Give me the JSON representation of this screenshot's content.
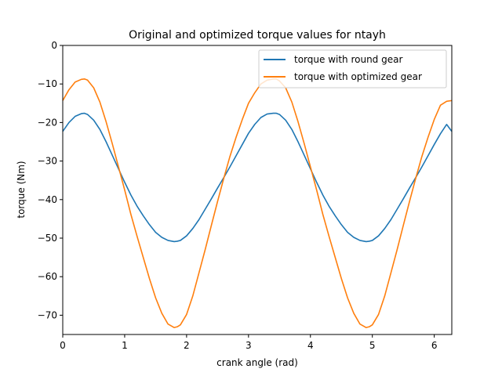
{
  "chart_data": {
    "type": "line",
    "title": "Original and optimized torque values for ntayh",
    "xlabel": "crank angle (rad)",
    "ylabel": "torque (Nm)",
    "xlim": [
      0,
      6.2832
    ],
    "ylim": [
      -75,
      0
    ],
    "xticks": [
      0,
      1,
      2,
      3,
      4,
      5,
      6
    ],
    "yticks": [
      0,
      -10,
      -20,
      -30,
      -40,
      -50,
      -60,
      -70
    ],
    "xtick_labels": [
      "0",
      "1",
      "2",
      "3",
      "4",
      "5",
      "6"
    ],
    "ytick_labels": [
      "0",
      "−10",
      "−20",
      "−30",
      "−40",
      "−50",
      "−60",
      "−70"
    ],
    "grid": false,
    "legend_position": "upper right",
    "series": [
      {
        "name": "torque with round gear",
        "color": "#1f77b4",
        "x": [
          0,
          0.1,
          0.2,
          0.3,
          0.35,
          0.4,
          0.5,
          0.6,
          0.7,
          0.8,
          0.9,
          1.0,
          1.1,
          1.2,
          1.3,
          1.4,
          1.5,
          1.6,
          1.7,
          1.8,
          1.85,
          1.9,
          2.0,
          2.1,
          2.2,
          2.3,
          2.4,
          2.5,
          2.6,
          2.7,
          2.8,
          2.9,
          3.0,
          3.1,
          3.2,
          3.3,
          3.4,
          3.45,
          3.5,
          3.6,
          3.7,
          3.8,
          3.9,
          4.0,
          4.1,
          4.2,
          4.3,
          4.4,
          4.5,
          4.6,
          4.7,
          4.8,
          4.9,
          4.95,
          5.0,
          5.1,
          5.2,
          5.3,
          5.4,
          5.5,
          5.6,
          5.7,
          5.8,
          5.9,
          6.0,
          6.1,
          6.2,
          6.2832
        ],
        "y": [
          -22.3,
          -20.0,
          -18.4,
          -17.7,
          -17.6,
          -17.9,
          -19.4,
          -21.8,
          -25.0,
          -28.5,
          -32.0,
          -35.5,
          -38.8,
          -41.7,
          -44.2,
          -46.5,
          -48.5,
          -49.8,
          -50.6,
          -50.9,
          -50.8,
          -50.6,
          -49.4,
          -47.5,
          -45.2,
          -42.5,
          -39.8,
          -37.0,
          -34.3,
          -31.5,
          -28.6,
          -25.7,
          -22.8,
          -20.5,
          -18.7,
          -17.8,
          -17.6,
          -17.6,
          -17.9,
          -19.4,
          -21.8,
          -25.0,
          -28.5,
          -32.0,
          -35.5,
          -38.8,
          -41.7,
          -44.2,
          -46.5,
          -48.5,
          -49.8,
          -50.6,
          -50.9,
          -50.8,
          -50.6,
          -49.4,
          -47.5,
          -45.2,
          -42.5,
          -39.8,
          -37.0,
          -34.3,
          -31.5,
          -28.6,
          -25.7,
          -22.9,
          -20.5,
          -22.3
        ]
      },
      {
        "name": "torque with optimized gear",
        "color": "#ff7f0e",
        "x": [
          0,
          0.1,
          0.2,
          0.3,
          0.35,
          0.4,
          0.5,
          0.6,
          0.7,
          0.8,
          0.9,
          1.0,
          1.1,
          1.2,
          1.3,
          1.4,
          1.5,
          1.6,
          1.7,
          1.8,
          1.85,
          1.9,
          2.0,
          2.1,
          2.2,
          2.3,
          2.4,
          2.5,
          2.6,
          2.7,
          2.8,
          2.9,
          3.0,
          3.1,
          3.2,
          3.3,
          3.4,
          3.45,
          3.5,
          3.6,
          3.7,
          3.8,
          3.9,
          4.0,
          4.1,
          4.2,
          4.3,
          4.4,
          4.5,
          4.6,
          4.7,
          4.8,
          4.9,
          4.95,
          5.0,
          5.1,
          5.2,
          5.3,
          5.4,
          5.5,
          5.6,
          5.7,
          5.8,
          5.9,
          6.0,
          6.1,
          6.2,
          6.2832
        ],
        "y": [
          -14.3,
          -11.5,
          -9.5,
          -8.8,
          -8.7,
          -9.0,
          -11.0,
          -14.7,
          -19.8,
          -25.5,
          -31.5,
          -37.5,
          -43.8,
          -49.5,
          -55.0,
          -60.5,
          -65.5,
          -69.5,
          -72.3,
          -73.2,
          -73.0,
          -72.5,
          -69.8,
          -65.0,
          -59.0,
          -53.0,
          -46.7,
          -40.5,
          -34.5,
          -28.8,
          -23.8,
          -19.2,
          -15.0,
          -12.3,
          -10.0,
          -9.0,
          -8.7,
          -8.7,
          -9.2,
          -11.0,
          -14.7,
          -19.8,
          -25.5,
          -31.5,
          -37.5,
          -43.8,
          -49.5,
          -55.0,
          -60.5,
          -65.5,
          -69.5,
          -72.3,
          -73.2,
          -73.0,
          -72.5,
          -69.8,
          -65.0,
          -59.0,
          -53.0,
          -46.7,
          -40.5,
          -34.5,
          -28.8,
          -23.8,
          -19.2,
          -15.5,
          -14.5,
          -14.3
        ]
      }
    ]
  }
}
